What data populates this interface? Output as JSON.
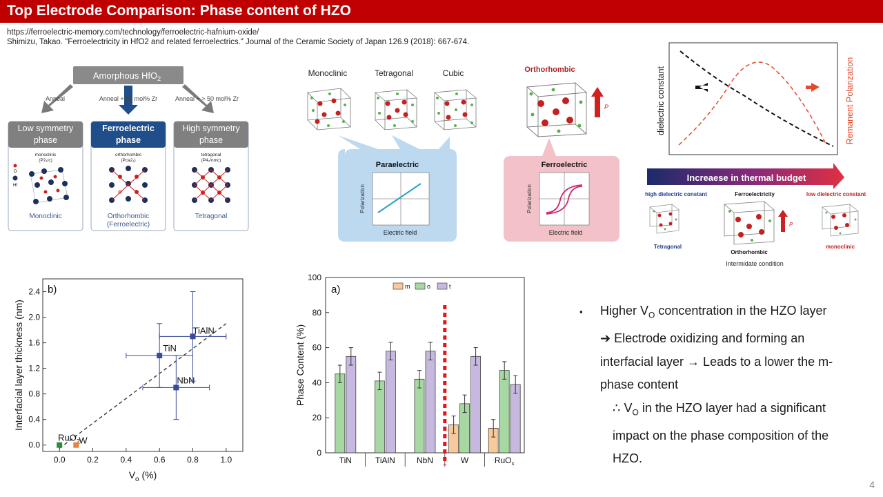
{
  "slide": {
    "title": "Top Electrode Comparison: Phase content of HZO",
    "ref_url": "https://ferroelectric-memory.com/technology/ferroelectric-hafnium-oxide/",
    "ref_citation": "Shimizu, Takao. \"Ferroelectricity in HfO2 and related ferroelectrics.\" Journal of the Ceramic Society of Japan 126.9 (2018): 667-674.",
    "page_number": "4"
  },
  "fig1": {
    "top_box": "Amorphous HfO",
    "top_box_sub": "2",
    "arrows": [
      "Anneal",
      "Anneal + 50 mol% Zr",
      "Anneal + > 50 mol% Zr"
    ],
    "cols": [
      {
        "header": "Low symmetry phase",
        "header2": "",
        "struct": "monoclinic",
        "group": "(P2₁/c)",
        "name": "Monoclinic",
        "name2": ""
      },
      {
        "header": "Ferroelectric phase",
        "header2": "",
        "struct": "orthorhombic",
        "group": "(Pca2₁)",
        "name": "Orthorhombic",
        "name2": "(Ferroelectric)"
      },
      {
        "header": "High symmetry phase",
        "header2": "",
        "struct": "tetragonal",
        "group": "(P4₂/nmc)",
        "name": "Tetragonal",
        "name2": ""
      }
    ],
    "legend_o": "O",
    "legend_hf": "Hf"
  },
  "fig2": {
    "phases": [
      "Monoclinic",
      "Tetragonal",
      "Cubic",
      "Orthorhombic"
    ],
    "para_title": "Paraelectric",
    "ferro_title": "Ferroelectric",
    "ylabel": "Polarization",
    "xlabel": "Electric field",
    "p_label": "P"
  },
  "fig3": {
    "ylabel_left": "dielectric constant",
    "ylabel_right": "Remanent Polarization",
    "banner": "Increaese in thermal budget",
    "high_label": "high dielectric constant",
    "ferro_label": "Ferroelectricity",
    "low_label": "low dielectric constant",
    "tet_label": "Tetragonal",
    "ortho_label": "Orthorhombic",
    "ortho_sub": "Intermidate condition",
    "mono_label": "monoclinic",
    "p_label": "P"
  },
  "chart_data": [
    {
      "type": "scatter",
      "panel_label": "b)",
      "title": "",
      "xlabel": "V",
      "xlabel_sub": "o",
      "xlabel_unit": " (%)",
      "ylabel": "Interfacial layer thickness (nm)",
      "xlim": [
        -0.1,
        1.1
      ],
      "ylim": [
        -0.1,
        2.6
      ],
      "xticks": [
        "0.0",
        "0.2",
        "0.4",
        "0.6",
        "0.8",
        "1.0"
      ],
      "yticks": [
        "0.0",
        "0.4",
        "0.8",
        "1.2",
        "1.6",
        "2.0",
        "2.4"
      ],
      "points": [
        {
          "label": "RuO",
          "label_sub": "2",
          "x": 0.0,
          "y": 0.0,
          "xerr": 0,
          "yerr": 0,
          "color": "#2e8b3e"
        },
        {
          "label": "W",
          "x": 0.1,
          "y": 0.0,
          "xerr": 0,
          "yerr": 0,
          "color": "#e8843c"
        },
        {
          "label": "TiN",
          "x": 0.6,
          "y": 1.4,
          "xerr": 0.2,
          "yerr": 0.5,
          "color": "#3a4a9a"
        },
        {
          "label": "NbN",
          "x": 0.7,
          "y": 0.9,
          "xerr": 0.2,
          "yerr": 0.5,
          "color": "#3a4a9a"
        },
        {
          "label": "TiAlN",
          "x": 0.8,
          "y": 1.7,
          "xerr": 0.2,
          "yerr": 0.7,
          "color": "#3a4a9a"
        }
      ],
      "fit_line": [
        [
          0.0,
          -0.05
        ],
        [
          1.0,
          1.9
        ]
      ]
    },
    {
      "type": "bar",
      "panel_label": "a)",
      "title": "",
      "xlabel": "",
      "ylabel": "Phase Content (%)",
      "ylim": [
        0,
        100
      ],
      "yticks": [
        "0",
        "20",
        "40",
        "60",
        "80",
        "100"
      ],
      "categories": [
        "TiN",
        "TiAlN",
        "NbN",
        "W",
        "RuO"
      ],
      "category_subs": [
        "",
        "",
        "",
        "",
        "x"
      ],
      "series": [
        {
          "name": "m",
          "color": "#f8c99a",
          "values": [
            0,
            0,
            0,
            16,
            14
          ],
          "errors": [
            0,
            0,
            0,
            5,
            5
          ]
        },
        {
          "name": "o",
          "color": "#a7d8a3",
          "values": [
            45,
            41,
            42,
            28,
            47
          ],
          "errors": [
            5,
            5,
            5,
            5,
            5
          ]
        },
        {
          "name": "t",
          "color": "#c6b8de",
          "values": [
            55,
            58,
            58,
            55,
            39
          ],
          "errors": [
            5,
            5,
            5,
            5,
            5
          ]
        }
      ],
      "divider_after_category": 2
    }
  ],
  "bullets": {
    "b1_pre": "Higher V",
    "b1_sub": "O",
    "b1_post": " concentration in the HZO layer",
    "b2": "➔ Electrode oxidizing and forming an",
    "b3": "interfacial layer → Leads to a lower the m-",
    "b4": "phase content",
    "b5_pre": "∴ V",
    "b5_sub": "O",
    "b5_post": " in the HZO layer had a significant",
    "b6": "impact on the phase composition of the",
    "b7": "HZO."
  }
}
